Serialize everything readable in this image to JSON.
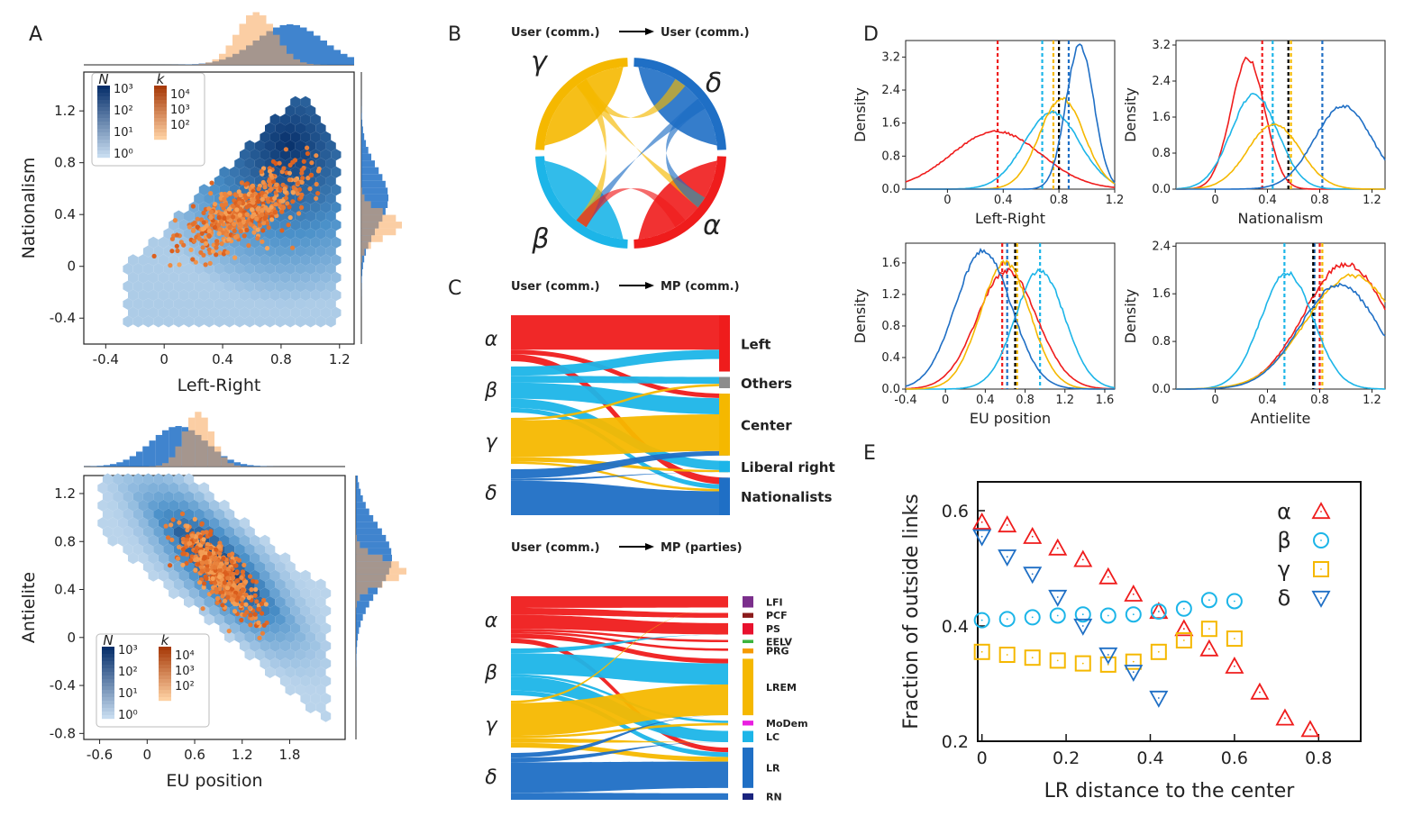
{
  "panels": {
    "A": "A",
    "B": "B",
    "C": "C",
    "D": "D",
    "E": "E"
  },
  "colors": {
    "alpha": "#ef1c1c",
    "beta": "#1cb5e8",
    "gamma": "#f5b800",
    "delta": "#1f6fc5",
    "black": "#000000",
    "others": "#8c8c8c",
    "hex_dark": "#08306b",
    "hex_light": "#c6dbef",
    "orange": "#e8742a"
  },
  "panel_a": {
    "top": {
      "xlabel": "Left-Right",
      "ylabel": "Nationalism",
      "xticks": [
        "-0.4",
        "0",
        "0.4",
        "0.8",
        "1.2"
      ],
      "yticks": [
        "1.2",
        "0.8",
        "0.4",
        "0",
        "-0.4"
      ],
      "xlim": [
        -0.55,
        1.3
      ],
      "ylim": [
        -0.6,
        1.5
      ]
    },
    "bottom": {
      "xlabel": "EU position",
      "ylabel": "Antielite",
      "xticks": [
        "-0.6",
        "0",
        "0.6",
        "1.2",
        "1.8"
      ],
      "yticks": [
        "1.2",
        "0.8",
        "0.4",
        "0",
        "-0.4",
        "-0.8"
      ],
      "xlim": [
        -0.8,
        2.5
      ],
      "ylim": [
        -0.85,
        1.35
      ]
    },
    "legend": {
      "n_symbol": "N",
      "k_symbol": "k",
      "n_ticks": [
        "10³",
        "10²",
        "10¹",
        "10⁰"
      ],
      "k_ticks": [
        "10⁴",
        "10³",
        "10²"
      ]
    }
  },
  "panel_b": {
    "title_left": "User (comm.)",
    "title_right": "User (comm.)",
    "greek": {
      "alpha": "α",
      "beta": "β",
      "gamma": "γ",
      "delta": "δ"
    }
  },
  "panel_c": {
    "top": {
      "title_left": "User (comm.)",
      "title_right": "MP (comm.)",
      "sources": [
        "α",
        "β",
        "γ",
        "δ"
      ],
      "targets": [
        "Left",
        "Others",
        "Center",
        "Liberal right",
        "Nationalists"
      ]
    },
    "bottom": {
      "title_left": "User (comm.)",
      "title_right": "MP (parties)",
      "sources": [
        "α",
        "β",
        "γ",
        "δ"
      ],
      "parties": [
        {
          "name": "LFI",
          "color": "#7b2f8c"
        },
        {
          "name": "PCF",
          "color": "#8b1a1a"
        },
        {
          "name": "PS",
          "color": "#e8112d"
        },
        {
          "name": "EELV",
          "color": "#3cb43c"
        },
        {
          "name": "PRG",
          "color": "#f59a00"
        },
        {
          "name": "LREM",
          "color": "#f5b800"
        },
        {
          "name": "MoDem",
          "color": "#e91ee0"
        },
        {
          "name": "LC",
          "color": "#1cb5e8"
        },
        {
          "name": "LR",
          "color": "#1f6fc5"
        },
        {
          "name": "RN",
          "color": "#1a237e"
        }
      ]
    }
  },
  "chart_data": [
    {
      "type": "line",
      "title": "D: Left-Right",
      "xlabel": "Left-Right",
      "ylabel": "Density",
      "xlim": [
        -0.3,
        1.2
      ],
      "ylim": [
        0,
        3.6
      ],
      "xticks": [
        "0",
        "0.4",
        "0.8",
        "1.2"
      ],
      "yticks": [
        "0.0",
        "0.8",
        "1.6",
        "2.4",
        "3.2"
      ],
      "series": [
        {
          "name": "α",
          "peak": 0.35,
          "width": 0.32,
          "height": 1.4
        },
        {
          "name": "β",
          "peak": 0.75,
          "width": 0.2,
          "height": 1.85
        },
        {
          "name": "γ",
          "peak": 0.82,
          "width": 0.16,
          "height": 2.2
        },
        {
          "name": "δ",
          "peak": 0.95,
          "width": 0.1,
          "height": 3.5
        }
      ],
      "vlines": [
        0.36,
        0.68,
        0.76,
        0.87,
        0.8
      ]
    },
    {
      "type": "line",
      "title": "D: Nationalism",
      "xlabel": "Nationalism",
      "ylabel": "Density",
      "xlim": [
        -0.3,
        1.3
      ],
      "ylim": [
        0,
        3.3
      ],
      "xticks": [
        "0",
        "0.4",
        "0.8",
        "1.2"
      ],
      "yticks": [
        "0.0",
        "0.8",
        "1.6",
        "2.4",
        "3.2"
      ],
      "series": [
        {
          "name": "α",
          "peak": 0.25,
          "width": 0.13,
          "height": 2.9
        },
        {
          "name": "β",
          "peak": 0.3,
          "width": 0.18,
          "height": 2.1
        },
        {
          "name": "γ",
          "peak": 0.45,
          "width": 0.2,
          "height": 1.45
        },
        {
          "name": "δ",
          "peak": 0.98,
          "width": 0.22,
          "height": 1.85
        }
      ],
      "vlines": [
        0.36,
        0.44,
        0.58,
        0.82,
        0.56
      ]
    },
    {
      "type": "line",
      "title": "D: EU position",
      "xlabel": "EU position",
      "ylabel": "Density",
      "xlim": [
        -0.4,
        1.7
      ],
      "ylim": [
        0,
        1.85
      ],
      "xticks": [
        "-0.4",
        "0",
        "0.4",
        "0.8",
        "1.2",
        "1.6"
      ],
      "yticks": [
        "0.0",
        "0.4",
        "0.8",
        "1.2",
        "1.6"
      ],
      "series": [
        {
          "name": "α",
          "peak": 0.62,
          "width": 0.3,
          "height": 1.5
        },
        {
          "name": "β",
          "peak": 0.95,
          "width": 0.25,
          "height": 1.5
        },
        {
          "name": "γ",
          "peak": 0.6,
          "width": 0.25,
          "height": 1.6
        },
        {
          "name": "δ",
          "peak": 0.38,
          "width": 0.28,
          "height": 1.75
        }
      ],
      "vlines": [
        0.57,
        0.95,
        0.72,
        0.62,
        0.7
      ]
    },
    {
      "type": "line",
      "title": "D: Antielite",
      "xlabel": "Antielite",
      "ylabel": "Density",
      "xlim": [
        -0.3,
        1.3
      ],
      "ylim": [
        0,
        2.45
      ],
      "xticks": [
        "0",
        "0.4",
        "0.8",
        "1.2"
      ],
      "yticks": [
        "0.0",
        "0.8",
        "1.6",
        "2.4"
      ],
      "series": [
        {
          "name": "α",
          "peak": 1.0,
          "width": 0.32,
          "height": 2.1
        },
        {
          "name": "β",
          "peak": 0.55,
          "width": 0.2,
          "height": 1.95
        },
        {
          "name": "γ",
          "peak": 1.05,
          "width": 0.35,
          "height": 1.9
        },
        {
          "name": "δ",
          "peak": 0.95,
          "width": 0.3,
          "height": 1.75
        }
      ],
      "vlines": [
        0.8,
        0.53,
        0.82,
        0.76,
        0.75
      ]
    },
    {
      "type": "scatter",
      "title": "E",
      "xlabel": "LR distance to the center",
      "ylabel": "Fraction of outside links",
      "xlim": [
        -0.01,
        0.9
      ],
      "ylim": [
        0.2,
        0.65
      ],
      "xticks": [
        "0",
        "0.2",
        "0.4",
        "0.6",
        "0.8"
      ],
      "yticks": [
        "0.2",
        "0.4",
        "0.6"
      ],
      "series": [
        {
          "name": "α",
          "marker": "triangle-up",
          "x": [
            0,
            0.06,
            0.12,
            0.18,
            0.24,
            0.3,
            0.36,
            0.42,
            0.48,
            0.54,
            0.6,
            0.66,
            0.72,
            0.78
          ],
          "y": [
            0.58,
            0.575,
            0.555,
            0.535,
            0.515,
            0.485,
            0.455,
            0.425,
            0.395,
            0.36,
            0.33,
            0.285,
            0.24,
            0.22
          ]
        },
        {
          "name": "β",
          "marker": "circle",
          "x": [
            0,
            0.06,
            0.12,
            0.18,
            0.24,
            0.3,
            0.36,
            0.42,
            0.48,
            0.54,
            0.6
          ],
          "y": [
            0.41,
            0.412,
            0.415,
            0.418,
            0.42,
            0.418,
            0.42,
            0.425,
            0.43,
            0.445,
            0.443
          ]
        },
        {
          "name": "γ",
          "marker": "square",
          "x": [
            0,
            0.06,
            0.12,
            0.18,
            0.24,
            0.3,
            0.36,
            0.42,
            0.48,
            0.54,
            0.6
          ],
          "y": [
            0.355,
            0.35,
            0.345,
            0.34,
            0.335,
            0.333,
            0.338,
            0.355,
            0.375,
            0.395,
            0.378
          ]
        },
        {
          "name": "δ",
          "marker": "triangle-down",
          "x": [
            0,
            0.06,
            0.12,
            0.18,
            0.24,
            0.3,
            0.36,
            0.42
          ],
          "y": [
            0.555,
            0.52,
            0.49,
            0.45,
            0.4,
            0.35,
            0.32,
            0.275
          ]
        }
      ]
    }
  ]
}
